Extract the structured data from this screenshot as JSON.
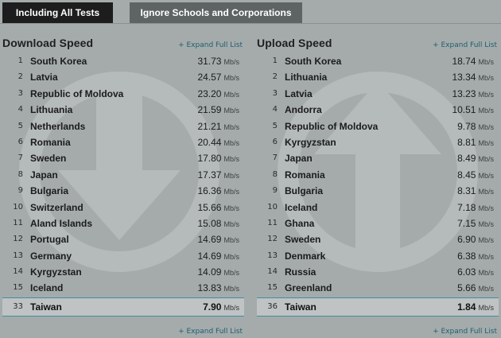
{
  "tabs": [
    {
      "label": "Including All Tests",
      "active": true
    },
    {
      "label": "Ignore Schools and Corporations",
      "active": false
    }
  ],
  "colors": {
    "accent": "#1e5f6e",
    "highlight_border": "#3f8f9f",
    "background": "#a5abab"
  },
  "download": {
    "title": "Download Speed",
    "expand_label": "+ Expand Full List",
    "unit": "Mb/s",
    "icon": "down-arrow-watermark-icon",
    "rows": [
      {
        "rank": "1",
        "country": "South Korea",
        "speed": "31.73"
      },
      {
        "rank": "2",
        "country": "Latvia",
        "speed": "24.57"
      },
      {
        "rank": "3",
        "country": "Republic of Moldova",
        "speed": "23.20"
      },
      {
        "rank": "4",
        "country": "Lithuania",
        "speed": "21.59"
      },
      {
        "rank": "5",
        "country": "Netherlands",
        "speed": "21.21"
      },
      {
        "rank": "6",
        "country": "Romania",
        "speed": "20.44"
      },
      {
        "rank": "7",
        "country": "Sweden",
        "speed": "17.80"
      },
      {
        "rank": "8",
        "country": "Japan",
        "speed": "17.37"
      },
      {
        "rank": "9",
        "country": "Bulgaria",
        "speed": "16.36"
      },
      {
        "rank": "10",
        "country": "Switzerland",
        "speed": "15.66"
      },
      {
        "rank": "11",
        "country": "Aland Islands",
        "speed": "15.08"
      },
      {
        "rank": "12",
        "country": "Portugal",
        "speed": "14.69"
      },
      {
        "rank": "13",
        "country": "Germany",
        "speed": "14.69"
      },
      {
        "rank": "14",
        "country": "Kyrgyzstan",
        "speed": "14.09"
      },
      {
        "rank": "15",
        "country": "Iceland",
        "speed": "13.83"
      }
    ],
    "highlight": {
      "rank": "33",
      "country": "Taiwan",
      "speed": "7.90"
    }
  },
  "upload": {
    "title": "Upload Speed",
    "expand_label": "+ Expand Full List",
    "unit": "Mb/s",
    "icon": "up-arrow-watermark-icon",
    "rows": [
      {
        "rank": "1",
        "country": "South Korea",
        "speed": "18.74"
      },
      {
        "rank": "2",
        "country": "Lithuania",
        "speed": "13.34"
      },
      {
        "rank": "3",
        "country": "Latvia",
        "speed": "13.23"
      },
      {
        "rank": "4",
        "country": "Andorra",
        "speed": "10.51"
      },
      {
        "rank": "5",
        "country": "Republic of Moldova",
        "speed": "9.78"
      },
      {
        "rank": "6",
        "country": "Kyrgyzstan",
        "speed": "8.81"
      },
      {
        "rank": "7",
        "country": "Japan",
        "speed": "8.49"
      },
      {
        "rank": "8",
        "country": "Romania",
        "speed": "8.45"
      },
      {
        "rank": "9",
        "country": "Bulgaria",
        "speed": "8.31"
      },
      {
        "rank": "10",
        "country": "Iceland",
        "speed": "7.18"
      },
      {
        "rank": "11",
        "country": "Ghana",
        "speed": "7.15"
      },
      {
        "rank": "12",
        "country": "Sweden",
        "speed": "6.90"
      },
      {
        "rank": "13",
        "country": "Denmark",
        "speed": "6.38"
      },
      {
        "rank": "14",
        "country": "Russia",
        "speed": "6.03"
      },
      {
        "rank": "15",
        "country": "Greenland",
        "speed": "5.66"
      }
    ],
    "highlight": {
      "rank": "36",
      "country": "Taiwan",
      "speed": "1.84"
    }
  }
}
